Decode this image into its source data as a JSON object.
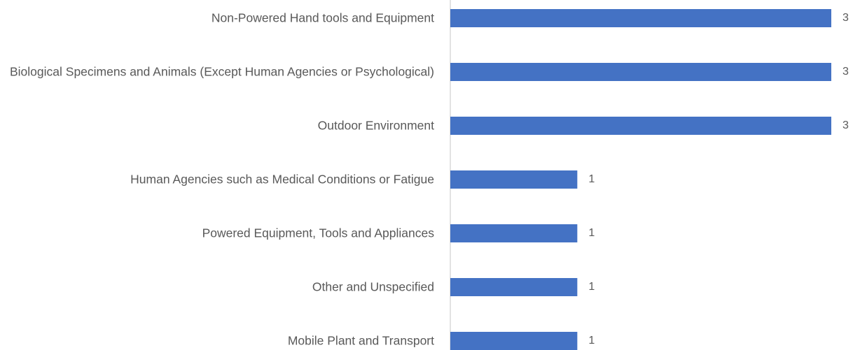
{
  "chart_data": {
    "type": "bar",
    "orientation": "horizontal",
    "categories": [
      "Non-Powered Hand tools and Equipment",
      "Biological Specimens and Animals (Except Human Agencies or Psychological)",
      "Outdoor Environment",
      "Human Agencies such as Medical Conditions or Fatigue",
      "Powered Equipment, Tools and Appliances",
      "Other and Unspecified",
      "Mobile Plant and Transport"
    ],
    "values": [
      3,
      3,
      3,
      1,
      1,
      1,
      1
    ],
    "color": "#4472c4"
  }
}
